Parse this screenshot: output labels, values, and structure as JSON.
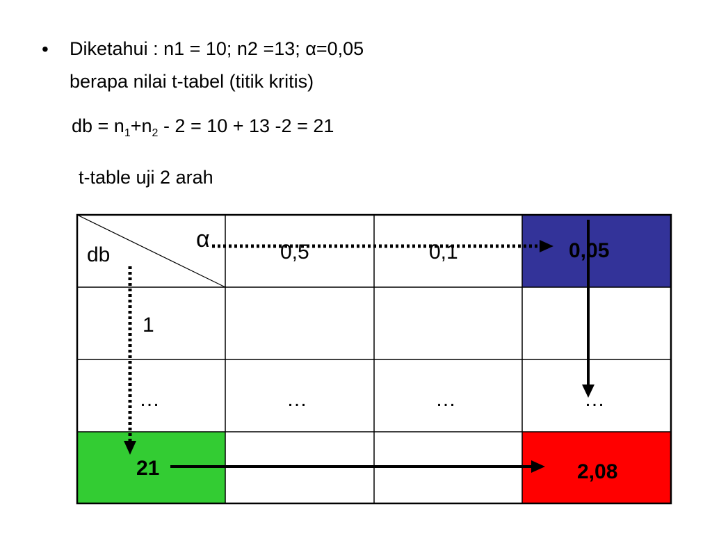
{
  "slide": {
    "bullet": "•",
    "given": "Diketahui : n1 = 10; n2 =13; α=0,05",
    "question": "berapa nilai t-tabel (titik kritis)",
    "formula": {
      "lhs": "db = n",
      "sub1": "1",
      "plus": "+n",
      "sub2": "2",
      "rhs": " - 2 = 10 + 13 -2 = 21"
    },
    "table_caption": "t-table uji 2 arah"
  },
  "table": {
    "corner_alpha": "α",
    "corner_db": "db",
    "alpha_headers": [
      "0,5",
      "0,1",
      "0,05"
    ],
    "row1_db": "1",
    "ellipsis": [
      "…",
      "…",
      "…",
      "…"
    ],
    "row21_db": "21",
    "result": "2,08"
  },
  "colors": {
    "highlight_alpha": "#333399",
    "highlight_db": "#33cc33",
    "highlight_result": "#ff0000"
  }
}
